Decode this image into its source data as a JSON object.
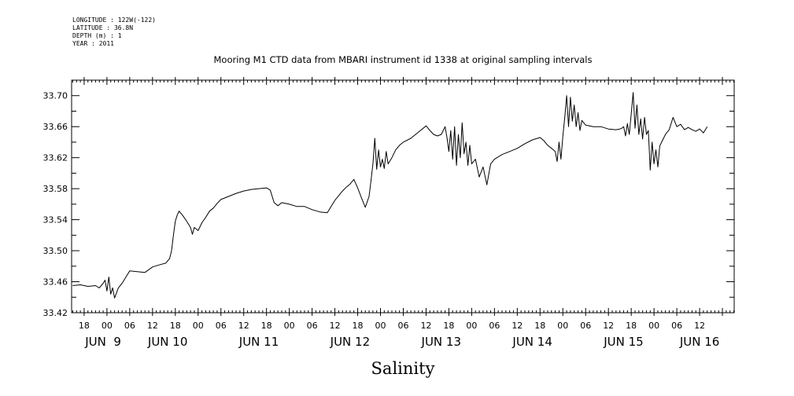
{
  "header": {
    "longitude": "LONGITUDE : 122W(-122)",
    "latitude": "LATITUDE : 36.8N",
    "depth": "DEPTH (m) : 1",
    "year": "YEAR : 2011"
  },
  "chart_data": {
    "type": "line",
    "title": "Mooring M1 CTD data from MBARI instrument id 1338 at original sampling intervals",
    "xlabel": "Salinity",
    "ylabel": "",
    "ylim": [
      33.42,
      33.72
    ],
    "yticks": [
      33.42,
      33.46,
      33.5,
      33.54,
      33.58,
      33.62,
      33.66,
      33.7
    ],
    "ytick_labels": [
      "33.42",
      "33.46",
      "33.50",
      "33.54",
      "33.58",
      "33.62",
      "33.66",
      "33.70"
    ],
    "xlim": [
      -9.3,
      165.1
    ],
    "x_units": "hours from 00 Jun 9 2011",
    "hour_ticks": [
      {
        "x": -6,
        "label": "18"
      },
      {
        "x": 0,
        "label": "00"
      },
      {
        "x": 6,
        "label": "06"
      },
      {
        "x": 12,
        "label": "12"
      },
      {
        "x": 18,
        "label": "18"
      },
      {
        "x": 24,
        "label": "00"
      },
      {
        "x": 30,
        "label": "06"
      },
      {
        "x": 36,
        "label": "12"
      },
      {
        "x": 42,
        "label": "18"
      },
      {
        "x": 48,
        "label": "00"
      },
      {
        "x": 54,
        "label": "06"
      },
      {
        "x": 60,
        "label": "12"
      },
      {
        "x": 66,
        "label": "18"
      },
      {
        "x": 72,
        "label": "00"
      },
      {
        "x": 78,
        "label": "06"
      },
      {
        "x": 84,
        "label": "12"
      },
      {
        "x": 90,
        "label": "18"
      },
      {
        "x": 96,
        "label": "00"
      },
      {
        "x": 102,
        "label": "06"
      },
      {
        "x": 108,
        "label": "12"
      },
      {
        "x": 114,
        "label": "18"
      },
      {
        "x": 120,
        "label": "00"
      },
      {
        "x": 126,
        "label": "06"
      },
      {
        "x": 132,
        "label": "12"
      },
      {
        "x": 138,
        "label": "18"
      },
      {
        "x": 144,
        "label": "00"
      },
      {
        "x": 150,
        "label": "06"
      },
      {
        "x": 156,
        "label": "12"
      }
    ],
    "day_labels": [
      {
        "x": -1,
        "label": "JUN  9"
      },
      {
        "x": 16,
        "label": "JUN 10"
      },
      {
        "x": 40,
        "label": "JUN 11"
      },
      {
        "x": 64,
        "label": "JUN 12"
      },
      {
        "x": 88,
        "label": "JUN 13"
      },
      {
        "x": 112,
        "label": "JUN 14"
      },
      {
        "x": 136,
        "label": "JUN 15"
      },
      {
        "x": 156,
        "label": "JUN 16"
      }
    ],
    "grid": false,
    "series": [
      {
        "color": "#000000",
        "x": [
          -9,
          -7,
          -5,
          -3,
          -2,
          -1,
          -0.5,
          0,
          0.5,
          1,
          1.5,
          2,
          3,
          4,
          5,
          6,
          8,
          10,
          12,
          14,
          15.5,
          16.5,
          17,
          17.5,
          18,
          18.5,
          19,
          20,
          21,
          22,
          22.5,
          23,
          24,
          25,
          26,
          27,
          28,
          29,
          30,
          32,
          34,
          36,
          38,
          40,
          42,
          43,
          44,
          45,
          46,
          48,
          50,
          52,
          54,
          56,
          58,
          60,
          62,
          63,
          64,
          65,
          66,
          67,
          68,
          69,
          69.5,
          70,
          70.5,
          71,
          71.5,
          72,
          72.5,
          73,
          73.5,
          74,
          75,
          76,
          77,
          78,
          80,
          82,
          84,
          85,
          86,
          87,
          88,
          89,
          89.5,
          90,
          90.5,
          91,
          91.5,
          92,
          92.5,
          93,
          93.5,
          94,
          94.5,
          95,
          95.5,
          96,
          97,
          98,
          99,
          100,
          101,
          102,
          104,
          106,
          108,
          110,
          112,
          114,
          115,
          116,
          117,
          118,
          118.5,
          119,
          119.5,
          120,
          120.5,
          121,
          121.5,
          122,
          122.5,
          123,
          123.5,
          124,
          124.5,
          125,
          126,
          128,
          130,
          132,
          134,
          135,
          135.5,
          136,
          136.5,
          137,
          137.5,
          138,
          138.5,
          139,
          139.5,
          140,
          140.5,
          141,
          141.5,
          142,
          142.5,
          143,
          143.5,
          144,
          144.5,
          145,
          145.5,
          146,
          147,
          148,
          149,
          150,
          151,
          152,
          153,
          154,
          155,
          156,
          157,
          158
        ],
        "y": [
          33.455,
          33.456,
          33.454,
          33.455,
          33.452,
          33.458,
          33.462,
          33.448,
          33.466,
          33.444,
          33.452,
          33.439,
          33.452,
          33.458,
          33.466,
          33.474,
          33.473,
          33.472,
          33.479,
          33.482,
          33.484,
          33.49,
          33.5,
          33.52,
          33.538,
          33.546,
          33.551,
          33.545,
          33.538,
          33.53,
          33.521,
          33.53,
          33.526,
          33.536,
          33.543,
          33.551,
          33.555,
          33.561,
          33.566,
          33.57,
          33.574,
          33.577,
          33.579,
          33.58,
          33.581,
          33.578,
          33.562,
          33.558,
          33.562,
          33.56,
          33.557,
          33.557,
          33.553,
          33.55,
          33.549,
          33.565,
          33.577,
          33.582,
          33.586,
          33.592,
          33.581,
          33.568,
          33.556,
          33.57,
          33.59,
          33.612,
          33.645,
          33.605,
          33.63,
          33.608,
          33.618,
          33.606,
          33.628,
          33.612,
          33.62,
          33.63,
          33.636,
          33.64,
          33.645,
          33.653,
          33.661,
          33.655,
          33.65,
          33.648,
          33.65,
          33.66,
          33.646,
          33.628,
          33.655,
          33.618,
          33.66,
          33.61,
          33.65,
          33.62,
          33.665,
          33.625,
          33.64,
          33.61,
          33.636,
          33.612,
          33.618,
          33.595,
          33.608,
          33.585,
          33.612,
          33.618,
          33.624,
          33.628,
          33.632,
          33.638,
          33.643,
          33.646,
          33.642,
          33.636,
          33.632,
          33.628,
          33.615,
          33.64,
          33.618,
          33.648,
          33.672,
          33.7,
          33.66,
          33.698,
          33.667,
          33.688,
          33.66,
          33.678,
          33.655,
          33.668,
          33.662,
          33.66,
          33.66,
          33.657,
          33.656,
          33.657,
          33.658,
          33.66,
          33.648,
          33.664,
          33.65,
          33.677,
          33.704,
          33.658,
          33.688,
          33.65,
          33.67,
          33.644,
          33.672,
          33.65,
          33.655,
          33.604,
          33.64,
          33.612,
          33.63,
          33.608,
          33.635,
          33.64,
          33.65,
          33.656,
          33.672,
          33.66,
          33.663,
          33.656,
          33.659,
          33.656,
          33.654,
          33.657,
          33.652,
          33.66
        ]
      }
    ]
  }
}
